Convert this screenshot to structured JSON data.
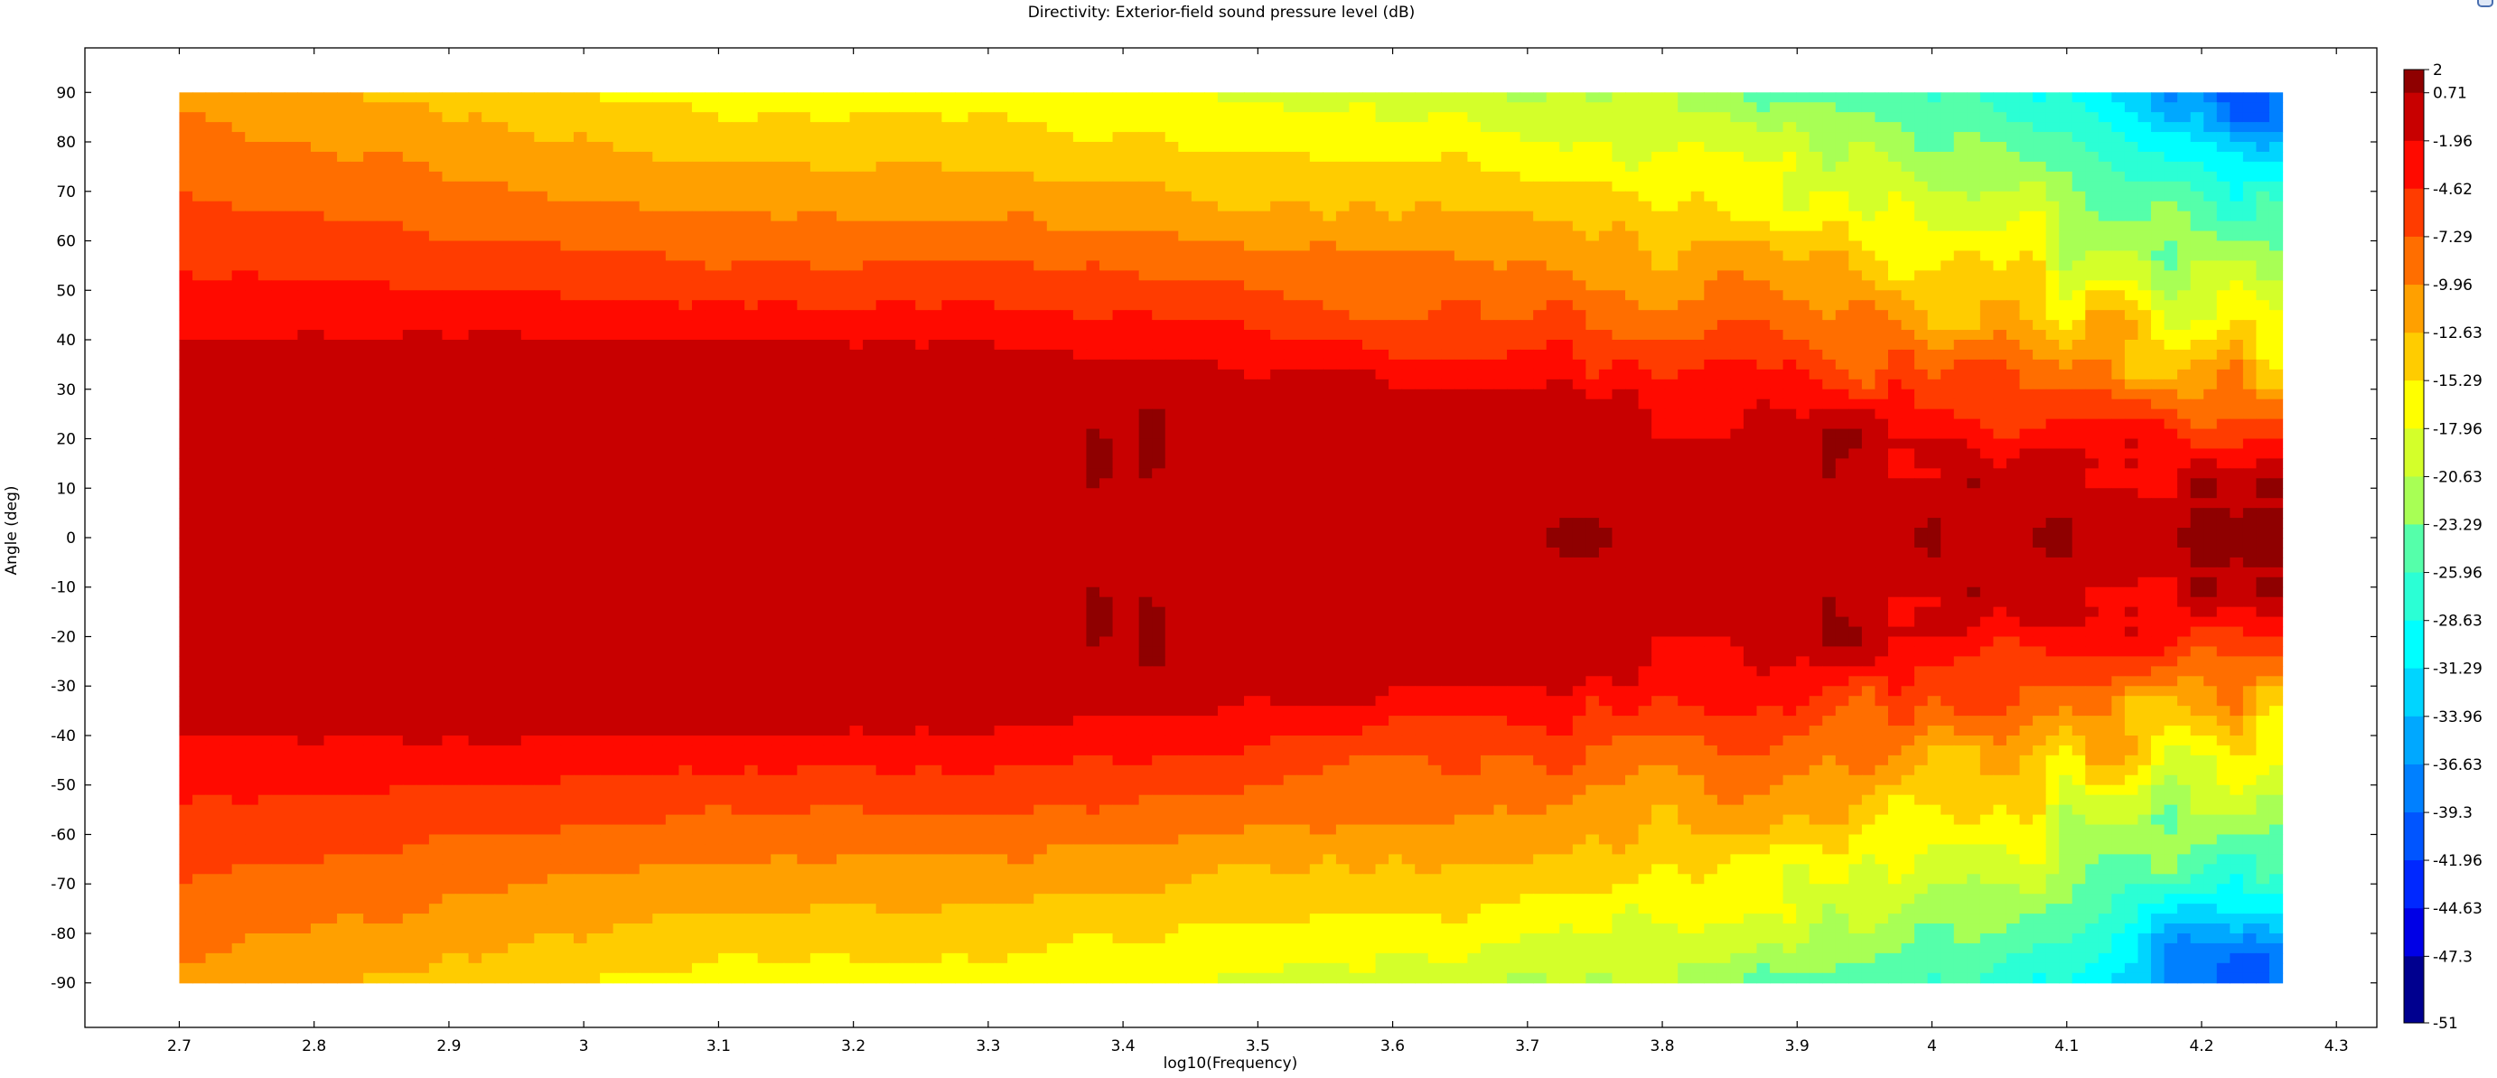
{
  "colors": {
    "background": "#ffffff",
    "axis": "#000000",
    "palette": "jet"
  },
  "icons": {
    "corner": "toolbar-corner-icon"
  },
  "chart_data": {
    "type": "heatmap",
    "style": "filled-contour",
    "title": "Directivity: Exterior-field sound pressure level (dB)",
    "xlabel": "log10(Frequency)",
    "ylabel": "Angle (deg)",
    "xlim": [
      2.63,
      4.33
    ],
    "ylim": [
      -99,
      99
    ],
    "x_data_range": [
      2.7,
      4.26
    ],
    "y_data_range": [
      -90,
      90
    ],
    "x_ticks": [
      "2.7",
      "2.8",
      "2.9",
      "3",
      "3.1",
      "3.2",
      "3.3",
      "3.4",
      "3.5",
      "3.6",
      "3.7",
      "3.8",
      "3.9",
      "4",
      "4.1",
      "4.2",
      "4.3"
    ],
    "y_ticks": [
      "90",
      "80",
      "70",
      "60",
      "50",
      "40",
      "30",
      "20",
      "10",
      "0",
      "-10",
      "-20",
      "-30",
      "-40",
      "-50",
      "-60",
      "-70",
      "-80",
      "-90"
    ],
    "z_range": [
      -51,
      2
    ],
    "colorbar": {
      "min_label": "-51",
      "max_label": "2",
      "levels": [
        "0.71",
        "-1.96",
        "-4.62",
        "-7.29",
        "-9.96",
        "-12.63",
        "-15.29",
        "-17.96",
        "-20.63",
        "-23.29",
        "-25.96",
        "-28.63",
        "-31.29",
        "-33.96",
        "-36.63",
        "-39.3",
        "-41.96",
        "-44.63",
        "-47.3"
      ],
      "placement": "right"
    },
    "contour_bands": [
      {
        "label": "0.71",
        "range": [
          0.71,
          2
        ],
        "color": "#8f0000"
      },
      {
        "label": "-1.96",
        "range": [
          -1.96,
          0.71
        ],
        "color": "#c80000"
      },
      {
        "label": "-4.62",
        "range": [
          -4.62,
          -1.96
        ],
        "color": "#ff0a00"
      },
      {
        "label": "-7.29",
        "range": [
          -7.29,
          -4.62
        ],
        "color": "#ff3c00"
      },
      {
        "label": "-9.96",
        "range": [
          -9.96,
          -7.29
        ],
        "color": "#ff6e00"
      },
      {
        "label": "-12.63",
        "range": [
          -12.63,
          -9.96
        ],
        "color": "#ffa000"
      },
      {
        "label": "-15.29",
        "range": [
          -15.29,
          -12.63
        ],
        "color": "#ffcc00"
      },
      {
        "label": "-17.96",
        "range": [
          -17.96,
          -15.29
        ],
        "color": "#ffff00"
      },
      {
        "label": "-20.63",
        "range": [
          -20.63,
          -17.96
        ],
        "color": "#d4ff2a"
      },
      {
        "label": "-23.29",
        "range": [
          -23.29,
          -20.63
        ],
        "color": "#a8ff55"
      },
      {
        "label": "-25.96",
        "range": [
          -25.96,
          -23.29
        ],
        "color": "#55ffaa"
      },
      {
        "label": "-28.63",
        "range": [
          -28.63,
          -25.96
        ],
        "color": "#2bffd5"
      },
      {
        "label": "-31.29",
        "range": [
          -31.29,
          -28.63
        ],
        "color": "#00ffff"
      },
      {
        "label": "-33.96",
        "range": [
          -33.96,
          -31.29
        ],
        "color": "#00d5ff"
      },
      {
        "label": "-36.63",
        "range": [
          -36.63,
          -33.96
        ],
        "color": "#00a8ff"
      },
      {
        "label": "-39.3",
        "range": [
          -39.3,
          -36.63
        ],
        "color": "#0080ff"
      },
      {
        "label": "-41.96",
        "range": [
          -41.96,
          -39.3
        ],
        "color": "#0055ff"
      },
      {
        "label": "-44.63",
        "range": [
          -44.63,
          -41.96
        ],
        "color": "#0028ff"
      },
      {
        "label": "-47.3",
        "range": [
          -47.3,
          -44.63
        ],
        "color": "#0000e6"
      },
      {
        "label": "-51",
        "range": [
          -51,
          -47.3
        ],
        "color": "#00008f"
      }
    ],
    "field_model": {
      "description_free": true,
      "shape": "symmetric in angle; level falls off from 0 deg toward +/-90 deg and more strongly at high frequency",
      "beam_halfwidth_deg_by_x": [
        [
          2.7,
          37
        ],
        [
          3.0,
          38
        ],
        [
          3.3,
          37
        ],
        [
          3.5,
          32
        ],
        [
          3.7,
          28
        ],
        [
          3.9,
          22
        ],
        [
          4.1,
          16
        ],
        [
          4.26,
          13
        ]
      ],
      "edge_level_db_by_x": [
        [
          2.7,
          -10.5
        ],
        [
          2.9,
          -13.5
        ],
        [
          3.1,
          -16.5
        ],
        [
          3.3,
          -16.5
        ],
        [
          3.5,
          -18.5
        ],
        [
          3.7,
          -20
        ],
        [
          3.9,
          -23
        ],
        [
          4.05,
          -27
        ],
        [
          4.15,
          -33
        ],
        [
          4.26,
          -38
        ]
      ],
      "peaks": [
        {
          "x": 3.382,
          "y": 20,
          "level_db": 1.6
        },
        {
          "x": 3.382,
          "y": -20,
          "level_db": 1.6
        },
        {
          "x": 3.418,
          "y": 20,
          "level_db": 1.8
        },
        {
          "x": 3.418,
          "y": -20,
          "level_db": 1.8
        },
        {
          "x": 3.76,
          "y": 30,
          "level_db": 0.9
        },
        {
          "x": 3.76,
          "y": -30,
          "level_db": 0.9
        }
      ],
      "deep_minima": [
        {
          "x": 4.24,
          "y": 85,
          "level_db": -47
        },
        {
          "x": 4.24,
          "y": -85,
          "level_db": -47
        },
        {
          "x": 4.19,
          "y": -80,
          "level_db": -44
        }
      ]
    }
  }
}
